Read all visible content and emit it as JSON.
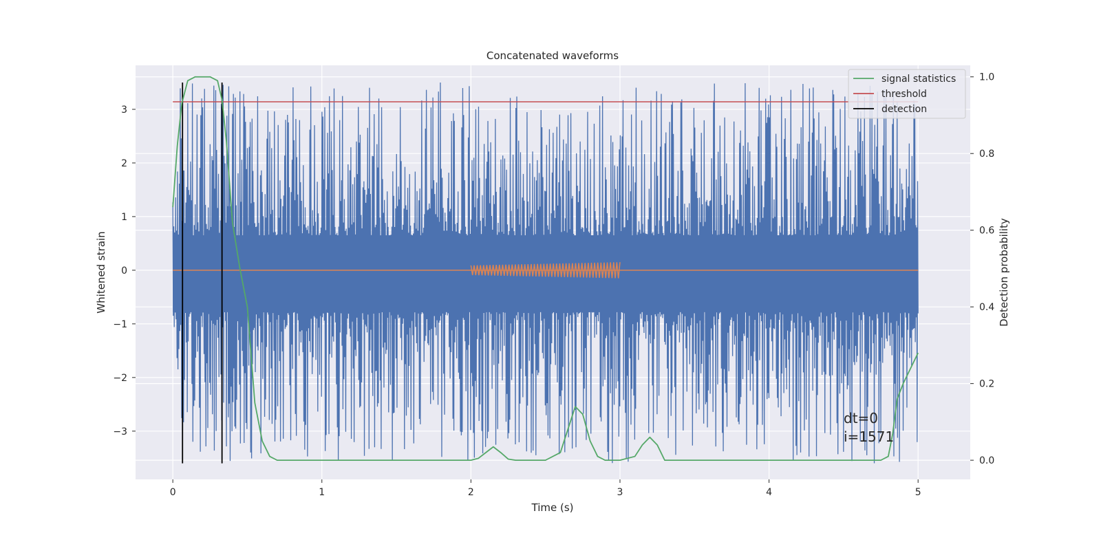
{
  "chart_data": {
    "type": "line",
    "title": "Concatenated waveforms",
    "xlabel": "Time (s)",
    "ylabel": "Whitened strain",
    "ylabel_right": "Detection probability",
    "xlim": [
      -0.25,
      5.35
    ],
    "ylim": [
      -3.9,
      3.82
    ],
    "ylim_right": [
      -0.05,
      1.03
    ],
    "xticks": [
      0,
      1,
      2,
      3,
      4,
      5
    ],
    "yticks": [
      -3,
      -2,
      -1,
      0,
      1,
      2,
      3
    ],
    "yticks_right": [
      0.0,
      0.2,
      0.4,
      0.6,
      0.8,
      1.0
    ],
    "xtick_labels": [
      "0",
      "1",
      "2",
      "3",
      "4",
      "5"
    ],
    "ytick_labels": [
      "−3",
      "−2",
      "−1",
      "0",
      "1",
      "2",
      "3"
    ],
    "ytick_labels_right": [
      "0.0",
      "0.2",
      "0.4",
      "0.6",
      "0.8",
      "1.0"
    ],
    "grid": true,
    "legend_position": "top-right",
    "colors": {
      "strain": "#4c72b0",
      "injection": "#dd8452",
      "signal_statistics": "#55a868",
      "threshold": "#c44e52",
      "detection": "#000000",
      "plot_background": "#eaeaf2"
    },
    "series": [
      {
        "name": "signal statistics",
        "axis": "right",
        "x": [
          0.0,
          0.03,
          0.06,
          0.1,
          0.15,
          0.2,
          0.25,
          0.3,
          0.33,
          0.36,
          0.4,
          0.45,
          0.5,
          0.55,
          0.6,
          0.65,
          0.7,
          0.8,
          1.0,
          1.5,
          2.0,
          2.05,
          2.1,
          2.15,
          2.2,
          2.25,
          2.3,
          2.5,
          2.6,
          2.65,
          2.7,
          2.75,
          2.8,
          2.85,
          2.9,
          3.0,
          3.1,
          3.15,
          3.2,
          3.25,
          3.3,
          3.5,
          4.0,
          4.5,
          4.75,
          4.8,
          4.83,
          4.86,
          4.9,
          4.95,
          5.0
        ],
        "y": [
          0.66,
          0.82,
          0.93,
          0.99,
          1.0,
          1.0,
          1.0,
          0.99,
          0.94,
          0.83,
          0.62,
          0.5,
          0.4,
          0.15,
          0.05,
          0.01,
          0.0,
          0.0,
          0.0,
          0.0,
          0.0,
          0.005,
          0.02,
          0.035,
          0.02,
          0.003,
          0.0,
          0.0,
          0.02,
          0.08,
          0.14,
          0.12,
          0.05,
          0.01,
          0.0,
          0.0,
          0.01,
          0.04,
          0.06,
          0.04,
          0.0,
          0.0,
          0.0,
          0.0,
          0.0,
          0.01,
          0.07,
          0.16,
          0.2,
          0.24,
          0.28
        ]
      },
      {
        "name": "threshold",
        "axis": "left",
        "x": [
          0.0,
          5.0
        ],
        "y": [
          3.14,
          3.14
        ]
      },
      {
        "name": "detection",
        "axis": "left",
        "x": [
          0.065,
          0.33
        ],
        "y_range": [
          -3.6,
          3.5
        ]
      }
    ],
    "strain": {
      "x_range": [
        0.0,
        5.0
      ],
      "samples": 1600,
      "core_band": [
        -0.78,
        0.65
      ],
      "min": -3.6,
      "max": 3.5
    },
    "injection": {
      "x_range": [
        2.0,
        3.0
      ],
      "start_amplitude": 0.09,
      "end_amplitude": 0.15,
      "cycles": 47
    },
    "annotations": [
      "dt=0",
      "i=1571"
    ]
  }
}
